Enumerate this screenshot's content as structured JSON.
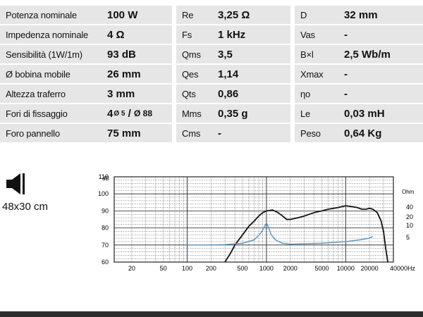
{
  "specs": {
    "col1": [
      {
        "name": "Potenza nominale",
        "value": "100 W"
      },
      {
        "name": "Impedenza nominale",
        "value": "4 Ω"
      },
      {
        "name": "Sensibilità (1W/1m)",
        "value": "93 dB"
      },
      {
        "name": "Ø bobina mobile",
        "value": "26 mm"
      },
      {
        "name": "Altezza traferro",
        "value": "3 mm"
      },
      {
        "name": "Fori di fissaggio",
        "value_main": "4",
        "value_sup": "Ø 5",
        "value_sep": " / ",
        "value_small": "Ø 88"
      },
      {
        "name": "Foro pannello",
        "value": "75 mm"
      }
    ],
    "col2": [
      {
        "name": "Re",
        "value": "3,25 Ω"
      },
      {
        "name": "Fs",
        "value": "1 kHz"
      },
      {
        "name": "Qms",
        "value": "3,5"
      },
      {
        "name": "Qes",
        "value": "1,14"
      },
      {
        "name": "Qts",
        "value": "0,86"
      },
      {
        "name": "Mms",
        "value": "0,35 g"
      },
      {
        "name": "Cms",
        "value": "-"
      }
    ],
    "col3": [
      {
        "name": "D",
        "value": "32 mm"
      },
      {
        "name": "Vas",
        "value": "-"
      },
      {
        "name": "B×l",
        "value": "2,5 Wb/m"
      },
      {
        "name": "Xmax",
        "value": "-"
      },
      {
        "name": "ηo",
        "value": "-"
      },
      {
        "name": "Le",
        "value": "0,03 mH"
      },
      {
        "name": "Peso",
        "value": "0,64 Kg"
      }
    ]
  },
  "box_size": "48x30 cm",
  "chart_data": {
    "type": "line",
    "x_scale": "log",
    "xlim": [
      12,
      40000
    ],
    "x_ticks": [
      20,
      50,
      100,
      200,
      500,
      1000,
      2000,
      5000,
      10000,
      20000,
      40000
    ],
    "x_tick_labels": [
      "20",
      "50",
      "100",
      "200",
      "500",
      "1000",
      "2000",
      "5000",
      "10000",
      "20000",
      "40000Hz"
    ],
    "y_left_unit": "dB",
    "y_left_ticks": [
      60,
      70,
      80,
      90,
      100,
      110
    ],
    "y_left_labels": [
      "60",
      "70",
      "80",
      "90",
      "100",
      "110"
    ],
    "ylim_left": [
      60,
      110
    ],
    "y_right_unit": "Ohm",
    "y_right_ticks": [
      5,
      10,
      20,
      40
    ],
    "y_right_labels": [
      "5",
      "10",
      "20",
      "40"
    ],
    "grid": true,
    "colors": {
      "spl": "#111111",
      "impedance": "#5b9ac7",
      "grid": "#222222",
      "background": "#ffffff"
    },
    "series": [
      {
        "axis": "left",
        "points": [
          [
            300,
            60
          ],
          [
            350,
            65
          ],
          [
            400,
            70
          ],
          [
            500,
            76
          ],
          [
            600,
            81
          ],
          [
            700,
            84
          ],
          [
            800,
            87
          ],
          [
            900,
            89
          ],
          [
            1000,
            90
          ],
          [
            1200,
            90.5
          ],
          [
            1400,
            89
          ],
          [
            1600,
            87
          ],
          [
            1800,
            85
          ],
          [
            2000,
            85
          ],
          [
            2500,
            86
          ],
          [
            3000,
            87
          ],
          [
            4000,
            89
          ],
          [
            5000,
            90
          ],
          [
            6000,
            91
          ],
          [
            7000,
            91.5
          ],
          [
            8000,
            92
          ],
          [
            9000,
            92.5
          ],
          [
            10000,
            93
          ],
          [
            12000,
            92.5
          ],
          [
            14000,
            92
          ],
          [
            16000,
            91
          ],
          [
            18000,
            91
          ],
          [
            20000,
            91.5
          ],
          [
            22000,
            91
          ],
          [
            25000,
            89
          ],
          [
            28000,
            84
          ],
          [
            30000,
            78
          ],
          [
            32000,
            68
          ],
          [
            34000,
            60
          ]
        ]
      },
      {
        "axis": "left",
        "points": [
          [
            100,
            70
          ],
          [
            200,
            70
          ],
          [
            300,
            70.2
          ],
          [
            500,
            71
          ],
          [
            700,
            73
          ],
          [
            850,
            77
          ],
          [
            950,
            81
          ],
          [
            1000,
            83
          ],
          [
            1050,
            81
          ],
          [
            1150,
            76
          ],
          [
            1300,
            73
          ],
          [
            1600,
            71
          ],
          [
            2000,
            70.5
          ],
          [
            5000,
            71
          ],
          [
            10000,
            72
          ],
          [
            15000,
            73
          ],
          [
            20000,
            74
          ],
          [
            22000,
            75
          ]
        ]
      }
    ]
  }
}
